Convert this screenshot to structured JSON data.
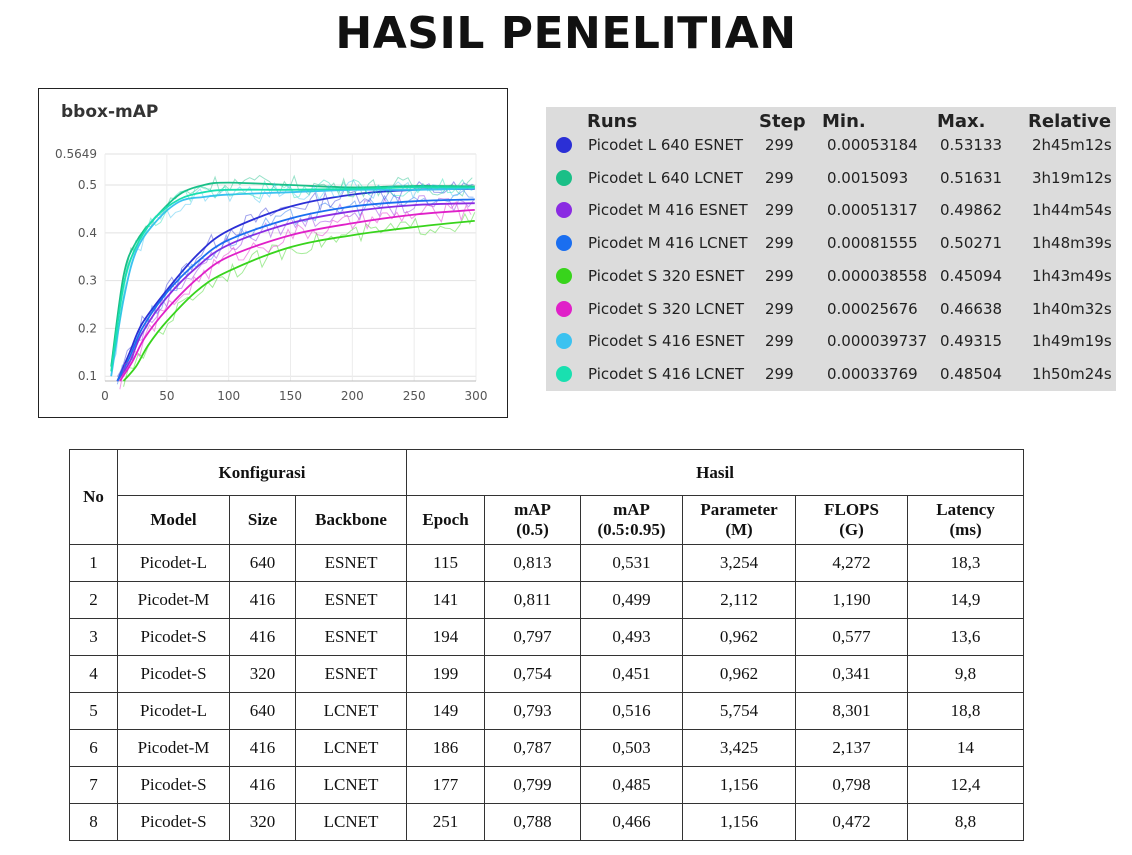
{
  "slide": {
    "title": "HASIL PENELITIAN"
  },
  "chart_data": {
    "type": "line",
    "title": "bbox-mAP",
    "xlim": [
      0,
      300
    ],
    "ylim": [
      0.09,
      0.5649
    ],
    "x_ticks": [
      "0",
      "50",
      "100",
      "150",
      "200",
      "250",
      "300"
    ],
    "y_ticks": [
      "0.1",
      "0.2",
      "0.3",
      "0.4",
      "0.5",
      "0.5649"
    ],
    "grid": true,
    "series": [
      {
        "name": "Picodet L 640 ESNET",
        "color": "#2b2fd6",
        "x": [
          10,
          20,
          30,
          50,
          75,
          100,
          150,
          200,
          250,
          299
        ],
        "y": [
          0.09,
          0.15,
          0.21,
          0.28,
          0.355,
          0.405,
          0.455,
          0.48,
          0.49,
          0.492
        ]
      },
      {
        "name": "Picodet L 640 LCNET",
        "color": "#1abf87",
        "x": [
          5,
          15,
          25,
          40,
          60,
          80,
          100,
          150,
          200,
          250,
          299
        ],
        "y": [
          0.12,
          0.31,
          0.38,
          0.43,
          0.48,
          0.5,
          0.505,
          0.5,
          0.495,
          0.498,
          0.497
        ]
      },
      {
        "name": "Picodet M 416 ESNET",
        "color": "#8a2be2",
        "x": [
          10,
          20,
          30,
          50,
          75,
          100,
          150,
          200,
          250,
          299
        ],
        "y": [
          0.09,
          0.13,
          0.19,
          0.265,
          0.33,
          0.375,
          0.42,
          0.445,
          0.458,
          0.462
        ]
      },
      {
        "name": "Picodet M 416 LCNET",
        "color": "#1a6ef0",
        "x": [
          10,
          20,
          30,
          50,
          75,
          100,
          150,
          200,
          250,
          299
        ],
        "y": [
          0.09,
          0.14,
          0.2,
          0.275,
          0.34,
          0.385,
          0.43,
          0.455,
          0.466,
          0.47
        ]
      },
      {
        "name": "Picodet S 320 ESNET",
        "color": "#38d41c",
        "x": [
          15,
          25,
          35,
          50,
          75,
          100,
          150,
          200,
          250,
          299
        ],
        "y": [
          0.09,
          0.12,
          0.165,
          0.215,
          0.28,
          0.32,
          0.37,
          0.395,
          0.412,
          0.425
        ]
      },
      {
        "name": "Picodet S 320 LCNET",
        "color": "#e020c8",
        "x": [
          12,
          22,
          32,
          50,
          75,
          100,
          150,
          200,
          250,
          299
        ],
        "y": [
          0.09,
          0.13,
          0.18,
          0.24,
          0.305,
          0.35,
          0.395,
          0.42,
          0.438,
          0.448
        ]
      },
      {
        "name": "Picodet S 416 ESNET",
        "color": "#3bc2f0",
        "x": [
          5,
          15,
          25,
          40,
          60,
          80,
          100,
          150,
          200,
          250,
          299
        ],
        "y": [
          0.1,
          0.26,
          0.36,
          0.42,
          0.465,
          0.475,
          0.48,
          0.485,
          0.49,
          0.49,
          0.493
        ]
      },
      {
        "name": "Picodet S 416 LCNET",
        "color": "#19e0b0",
        "x": [
          5,
          15,
          25,
          40,
          60,
          80,
          100,
          150,
          200,
          250,
          299
        ],
        "y": [
          0.11,
          0.29,
          0.37,
          0.43,
          0.47,
          0.485,
          0.49,
          0.49,
          0.492,
          0.495,
          0.495
        ]
      }
    ]
  },
  "runs_panel": {
    "headers": {
      "runs": "Runs",
      "step": "Step",
      "min": "Min.",
      "max": "Max.",
      "relative": "Relative"
    },
    "rows": [
      {
        "name": "Picodet L 640 ESNET",
        "step": "299",
        "min": "0.00053184",
        "max": "0.53133",
        "relative": "2h45m12s",
        "color": "#2b2fd6"
      },
      {
        "name": "Picodet L 640 LCNET",
        "step": "299",
        "min": "0.0015093",
        "max": "0.51631",
        "relative": "3h19m12s",
        "color": "#1abf87"
      },
      {
        "name": "Picodet M 416 ESNET",
        "step": "299",
        "min": "0.00051317",
        "max": "0.49862",
        "relative": "1h44m54s",
        "color": "#8a2be2"
      },
      {
        "name": "Picodet M 416 LCNET",
        "step": "299",
        "min": "0.00081555",
        "max": "0.50271",
        "relative": "1h48m39s",
        "color": "#1a6ef0"
      },
      {
        "name": "Picodet S 320 ESNET",
        "step": "299",
        "min": "0.000038558",
        "max": "0.45094",
        "relative": "1h43m49s",
        "color": "#38d41c"
      },
      {
        "name": "Picodet S 320 LCNET",
        "step": "299",
        "min": "0.00025676",
        "max": "0.46638",
        "relative": "1h40m32s",
        "color": "#e020c8"
      },
      {
        "name": "Picodet S 416 ESNET",
        "step": "299",
        "min": "0.000039737",
        "max": "0.49315",
        "relative": "1h49m19s",
        "color": "#3bc2f0"
      },
      {
        "name": "Picodet S 416 LCNET",
        "step": "299",
        "min": "0.00033769",
        "max": "0.48504",
        "relative": "1h50m24s",
        "color": "#19e0b0"
      }
    ]
  },
  "results_table": {
    "group_headers": {
      "no": "No",
      "konfigurasi": "Konfigurasi",
      "hasil": "Hasil"
    },
    "columns": [
      {
        "line1": "Model",
        "line2": ""
      },
      {
        "line1": "Size",
        "line2": ""
      },
      {
        "line1": "Backbone",
        "line2": ""
      },
      {
        "line1": "Epoch",
        "line2": ""
      },
      {
        "line1": "mAP",
        "line2": "(0.5)"
      },
      {
        "line1": "mAP",
        "line2": "(0.5:0.95)"
      },
      {
        "line1": "Parameter",
        "line2": "(M)"
      },
      {
        "line1": "FLOPS",
        "line2": "(G)"
      },
      {
        "line1": "Latency",
        "line2": "(ms)"
      }
    ],
    "rows": [
      [
        "1",
        "Picodet-L",
        "640",
        "ESNET",
        "115",
        "0,813",
        "0,531",
        "3,254",
        "4,272",
        "18,3"
      ],
      [
        "2",
        "Picodet-M",
        "416",
        "ESNET",
        "141",
        "0,811",
        "0,499",
        "2,112",
        "1,190",
        "14,9"
      ],
      [
        "3",
        "Picodet-S",
        "416",
        "ESNET",
        "194",
        "0,797",
        "0,493",
        "0,962",
        "0,577",
        "13,6"
      ],
      [
        "4",
        "Picodet-S",
        "320",
        "ESNET",
        "199",
        "0,754",
        "0,451",
        "0,962",
        "0,341",
        "9,8"
      ],
      [
        "5",
        "Picodet-L",
        "640",
        "LCNET",
        "149",
        "0,793",
        "0,516",
        "5,754",
        "8,301",
        "18,8"
      ],
      [
        "6",
        "Picodet-M",
        "416",
        "LCNET",
        "186",
        "0,787",
        "0,503",
        "3,425",
        "2,137",
        "14"
      ],
      [
        "7",
        "Picodet-S",
        "416",
        "LCNET",
        "177",
        "0,799",
        "0,485",
        "1,156",
        "0,798",
        "12,4"
      ],
      [
        "8",
        "Picodet-S",
        "320",
        "LCNET",
        "251",
        "0,788",
        "0,466",
        "1,156",
        "0,472",
        "8,8"
      ]
    ]
  }
}
